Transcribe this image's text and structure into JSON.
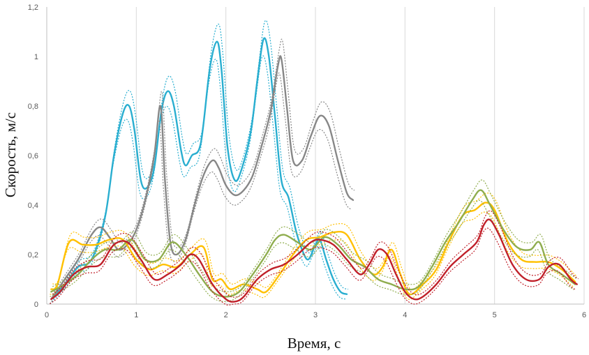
{
  "chart_data": {
    "type": "line",
    "title": "",
    "xlabel": "Время, с",
    "ylabel": "Скорость, м/с",
    "xlim": [
      0,
      6
    ],
    "ylim": [
      0,
      1.2
    ],
    "x_ticks": [
      0,
      1,
      2,
      3,
      4,
      5,
      6
    ],
    "x_tick_labels": [
      "0",
      "1",
      "2",
      "3",
      "4",
      "5",
      "6"
    ],
    "y_ticks": [
      0,
      0.2,
      0.4,
      0.6,
      0.8,
      1,
      1.2
    ],
    "y_tick_labels": [
      "0",
      "0,2",
      "0,4",
      "0,6",
      "0,8",
      "1",
      "1,2"
    ],
    "grid": "vertical",
    "legend": "none",
    "series": [
      {
        "color": "#29aed0",
        "x": [
          0.05,
          0.2,
          0.35,
          0.5,
          0.65,
          0.75,
          0.85,
          0.92,
          0.98,
          1.05,
          1.12,
          1.2,
          1.28,
          1.35,
          1.42,
          1.5,
          1.55,
          1.62,
          1.72,
          1.82,
          1.9,
          1.95,
          2.02,
          2.1,
          2.18,
          2.28,
          2.35,
          2.42,
          2.48,
          2.55,
          2.62,
          2.7,
          2.78,
          2.85,
          2.92,
          3.0,
          3.05,
          3.12,
          3.2,
          3.28,
          3.35
        ],
        "y": [
          0.02,
          0.08,
          0.15,
          0.18,
          0.35,
          0.6,
          0.77,
          0.8,
          0.7,
          0.5,
          0.47,
          0.55,
          0.78,
          0.86,
          0.8,
          0.62,
          0.56,
          0.6,
          0.65,
          0.95,
          1.06,
          0.95,
          0.63,
          0.5,
          0.55,
          0.7,
          0.9,
          1.07,
          1.0,
          0.75,
          0.5,
          0.43,
          0.3,
          0.22,
          0.18,
          0.24,
          0.26,
          0.18,
          0.1,
          0.05,
          0.04
        ]
      },
      {
        "color": "#878787",
        "x": [
          0.05,
          0.2,
          0.35,
          0.5,
          0.6,
          0.7,
          0.8,
          0.9,
          1.0,
          1.1,
          1.2,
          1.27,
          1.32,
          1.38,
          1.45,
          1.55,
          1.65,
          1.75,
          1.85,
          1.92,
          2.0,
          2.1,
          2.2,
          2.3,
          2.4,
          2.5,
          2.58,
          2.62,
          2.68,
          2.75,
          2.85,
          2.95,
          3.05,
          3.15,
          3.25,
          3.35,
          3.42
        ],
        "y": [
          0.02,
          0.1,
          0.18,
          0.28,
          0.31,
          0.27,
          0.22,
          0.24,
          0.3,
          0.42,
          0.6,
          0.8,
          0.5,
          0.25,
          0.2,
          0.26,
          0.4,
          0.52,
          0.58,
          0.55,
          0.48,
          0.44,
          0.46,
          0.52,
          0.64,
          0.78,
          0.96,
          0.99,
          0.8,
          0.58,
          0.58,
          0.68,
          0.76,
          0.72,
          0.58,
          0.45,
          0.42
        ]
      },
      {
        "color": "#ffc000",
        "x": [
          0.05,
          0.12,
          0.25,
          0.4,
          0.55,
          0.7,
          0.85,
          1.0,
          1.15,
          1.3,
          1.45,
          1.6,
          1.75,
          1.85,
          1.95,
          2.05,
          2.2,
          2.35,
          2.45,
          2.6,
          2.75,
          2.9,
          3.05,
          3.2,
          3.35,
          3.5,
          3.65,
          3.75,
          3.85,
          3.95,
          4.05,
          4.2,
          4.35,
          4.5,
          4.65,
          4.78,
          4.9,
          5.0,
          5.15,
          5.3,
          5.45,
          5.6,
          5.75,
          5.9
        ],
        "y": [
          0.06,
          0.08,
          0.25,
          0.24,
          0.24,
          0.26,
          0.26,
          0.18,
          0.14,
          0.16,
          0.15,
          0.2,
          0.23,
          0.1,
          0.1,
          0.06,
          0.08,
          0.06,
          0.05,
          0.12,
          0.2,
          0.26,
          0.27,
          0.29,
          0.28,
          0.18,
          0.12,
          0.15,
          0.22,
          0.12,
          0.04,
          0.08,
          0.14,
          0.26,
          0.36,
          0.38,
          0.41,
          0.38,
          0.25,
          0.18,
          0.17,
          0.17,
          0.14,
          0.09
        ]
      },
      {
        "color": "#8fad4e",
        "x": [
          0.05,
          0.2,
          0.35,
          0.5,
          0.65,
          0.8,
          0.95,
          1.1,
          1.25,
          1.4,
          1.55,
          1.7,
          1.85,
          2.0,
          2.15,
          2.3,
          2.45,
          2.55,
          2.65,
          2.8,
          2.95,
          3.1,
          3.25,
          3.4,
          3.55,
          3.7,
          3.85,
          4.0,
          4.15,
          4.3,
          4.45,
          4.6,
          4.75,
          4.85,
          4.95,
          5.1,
          5.25,
          5.4,
          5.5,
          5.6,
          5.75,
          5.9
        ],
        "y": [
          0.05,
          0.08,
          0.12,
          0.18,
          0.22,
          0.22,
          0.26,
          0.18,
          0.18,
          0.25,
          0.2,
          0.12,
          0.05,
          0.03,
          0.05,
          0.12,
          0.2,
          0.26,
          0.28,
          0.25,
          0.22,
          0.27,
          0.24,
          0.18,
          0.15,
          0.1,
          0.08,
          0.06,
          0.07,
          0.15,
          0.25,
          0.33,
          0.42,
          0.46,
          0.4,
          0.3,
          0.23,
          0.22,
          0.25,
          0.16,
          0.12,
          0.08
        ]
      },
      {
        "color": "#c0202a",
        "x": [
          0.05,
          0.15,
          0.3,
          0.45,
          0.6,
          0.75,
          0.9,
          1.05,
          1.2,
          1.35,
          1.5,
          1.6,
          1.7,
          1.85,
          2.0,
          2.1,
          2.2,
          2.35,
          2.5,
          2.65,
          2.8,
          2.95,
          3.05,
          3.2,
          3.35,
          3.5,
          3.6,
          3.7,
          3.8,
          3.9,
          4.0,
          4.1,
          4.2,
          4.35,
          4.5,
          4.65,
          4.8,
          4.88,
          4.95,
          5.05,
          5.2,
          5.35,
          5.5,
          5.6,
          5.72,
          5.85,
          5.92
        ],
        "y": [
          0.02,
          0.05,
          0.12,
          0.15,
          0.16,
          0.24,
          0.25,
          0.18,
          0.1,
          0.12,
          0.16,
          0.2,
          0.18,
          0.08,
          0.02,
          0.01,
          0.03,
          0.1,
          0.14,
          0.16,
          0.2,
          0.25,
          0.26,
          0.24,
          0.18,
          0.12,
          0.16,
          0.22,
          0.2,
          0.12,
          0.05,
          0.02,
          0.03,
          0.08,
          0.15,
          0.2,
          0.25,
          0.32,
          0.34,
          0.28,
          0.16,
          0.1,
          0.1,
          0.15,
          0.16,
          0.1,
          0.08
        ]
      }
    ]
  }
}
